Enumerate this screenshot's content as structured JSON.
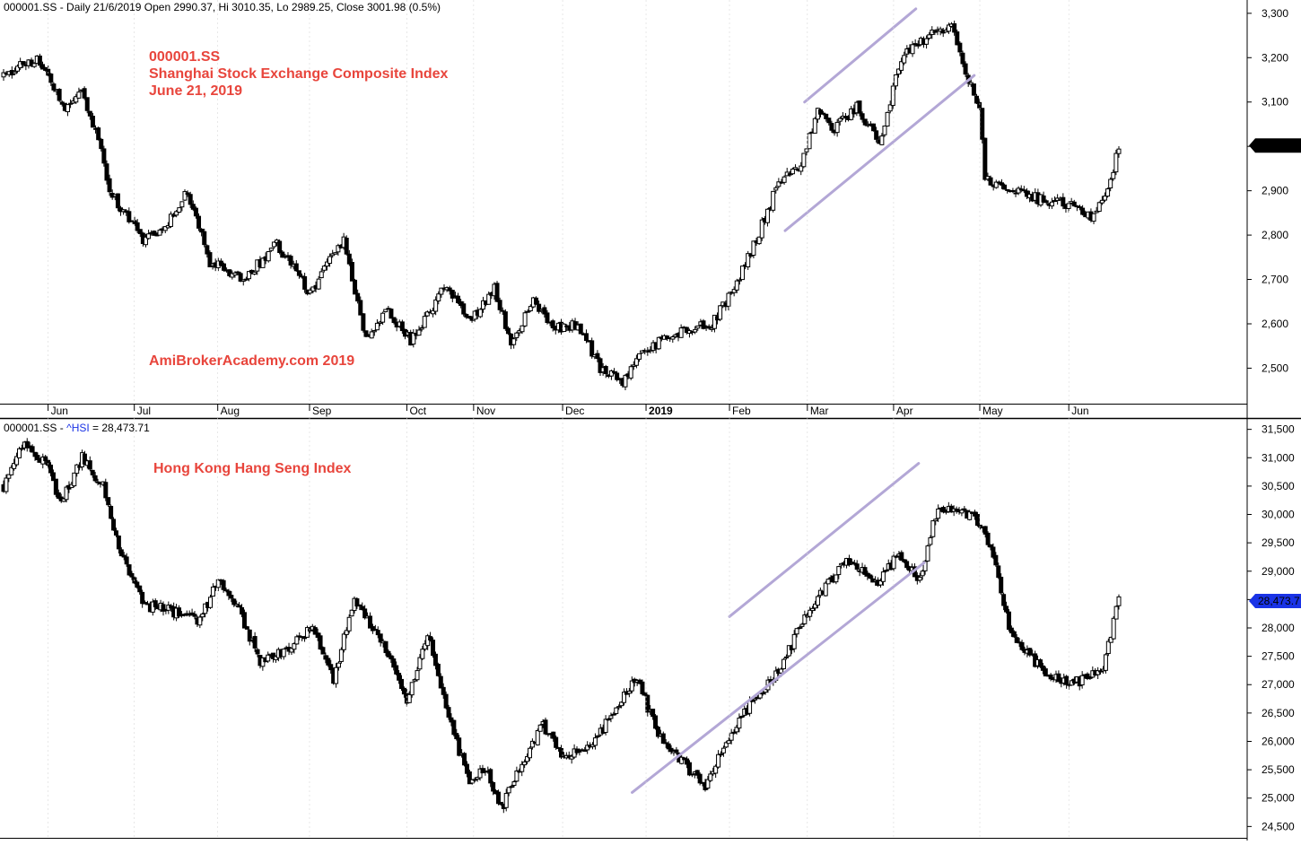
{
  "colors": {
    "annotation": "#e8453c",
    "channel": "#b3a7d6",
    "candle_up": "#ffffff",
    "candle_down": "#000000",
    "badge_fill": "#000000",
    "badge2_fill": "#1a33e6",
    "separator": "#000000",
    "series_link": "#1a33e6"
  },
  "date_axis_top": {
    "labels": [
      "Jun",
      "Jul",
      "Aug",
      "Sep",
      "Oct",
      "Nov",
      "Dec",
      "2019",
      "Feb",
      "Mar",
      "Apr",
      "May",
      "Jun"
    ],
    "bold_label": "2019"
  },
  "chart_data": [
    {
      "type": "candlestick",
      "header": "000001.SS - Daily 21/6/2019 Open 2990.37, Hi 3010.35, Lo 2989.25, Close 3001.98 (0.5%)",
      "annotations": [
        "000001.SS",
        "Shanghai Stock Exchange Composite Index",
        "June 21, 2019",
        "AmiBrokerAcademy.com  2019"
      ],
      "ylim": [
        2420,
        3330
      ],
      "yticks": [
        2500,
        2600,
        2700,
        2800,
        2900,
        3000,
        3100,
        3200,
        3300
      ],
      "ytick_labels": [
        "2,500",
        "2,600",
        "2,700",
        "2,800",
        "2,900",
        "3,000",
        "3,100",
        "3,200",
        "3,300"
      ],
      "last_value": 3001.98,
      "last_value_label": "3,001.98",
      "anchors": [
        [
          0,
          3160
        ],
        [
          12,
          3200
        ],
        [
          22,
          3080
        ],
        [
          28,
          3120
        ],
        [
          34,
          3020
        ],
        [
          38,
          2900
        ],
        [
          50,
          2790
        ],
        [
          58,
          2820
        ],
        [
          66,
          2900
        ],
        [
          74,
          2740
        ],
        [
          86,
          2700
        ],
        [
          98,
          2780
        ],
        [
          110,
          2670
        ],
        [
          122,
          2790
        ],
        [
          130,
          2560
        ],
        [
          138,
          2630
        ],
        [
          146,
          2560
        ],
        [
          158,
          2680
        ],
        [
          168,
          2610
        ],
        [
          176,
          2680
        ],
        [
          182,
          2560
        ],
        [
          190,
          2650
        ],
        [
          198,
          2590
        ],
        [
          206,
          2600
        ],
        [
          214,
          2500
        ],
        [
          222,
          2470
        ],
        [
          230,
          2540
        ],
        [
          238,
          2570
        ],
        [
          246,
          2590
        ],
        [
          254,
          2600
        ],
        [
          262,
          2680
        ],
        [
          270,
          2790
        ],
        [
          278,
          2920
        ],
        [
          286,
          2960
        ],
        [
          292,
          3080
        ],
        [
          298,
          3040
        ],
        [
          306,
          3090
        ],
        [
          314,
          3010
        ],
        [
          322,
          3200
        ],
        [
          332,
          3250
        ],
        [
          340,
          3270
        ],
        [
          346,
          3150
        ],
        [
          350,
          3080
        ],
        [
          352,
          2930
        ],
        [
          362,
          2900
        ],
        [
          372,
          2880
        ],
        [
          382,
          2870
        ],
        [
          390,
          2840
        ],
        [
          396,
          2900
        ],
        [
          400,
          3002
        ]
      ],
      "channel": [
        {
          "from": [
            "2019-02-28",
            3100
          ],
          "to": [
            "2019-04-09",
            3310
          ]
        },
        {
          "from": [
            "2019-02-21",
            2810
          ],
          "to": [
            "2019-04-30",
            3160
          ]
        }
      ]
    },
    {
      "type": "candlestick",
      "header_prefix": "000001.SS - ",
      "header_series": "^HSI",
      "header_value": " = 28,473.71",
      "annotations": [
        "Hong Kong Hang Seng Index"
      ],
      "ylim": [
        24300,
        31700
      ],
      "yticks": [
        24500,
        25000,
        25500,
        26000,
        26500,
        27000,
        27500,
        28000,
        28500,
        29000,
        29500,
        30000,
        30500,
        31000,
        31500
      ],
      "ytick_labels": [
        "24,500",
        "25,000",
        "25,500",
        "26,000",
        "26,500",
        "27,000",
        "27,500",
        "28,000",
        "28,500",
        "29,000",
        "29,500",
        "30,000",
        "30,500",
        "31,000",
        "31,500"
      ],
      "last_value": 28473.71,
      "last_value_label": "28,473.7",
      "anchors": [
        [
          0,
          30500
        ],
        [
          8,
          31300
        ],
        [
          16,
          30900
        ],
        [
          22,
          30200
        ],
        [
          30,
          31000
        ],
        [
          38,
          30500
        ],
        [
          44,
          29400
        ],
        [
          54,
          28400
        ],
        [
          64,
          28300
        ],
        [
          74,
          28100
        ],
        [
          82,
          28800
        ],
        [
          90,
          28300
        ],
        [
          98,
          27400
        ],
        [
          108,
          27600
        ],
        [
          118,
          28000
        ],
        [
          126,
          27100
        ],
        [
          134,
          28500
        ],
        [
          146,
          27600
        ],
        [
          154,
          26700
        ],
        [
          162,
          27900
        ],
        [
          172,
          26100
        ],
        [
          178,
          25300
        ],
        [
          184,
          25500
        ],
        [
          190,
          24800
        ],
        [
          196,
          25400
        ],
        [
          206,
          26300
        ],
        [
          214,
          25700
        ],
        [
          226,
          26000
        ],
        [
          234,
          26600
        ],
        [
          242,
          27100
        ],
        [
          250,
          26100
        ],
        [
          260,
          25600
        ],
        [
          268,
          25200
        ],
        [
          276,
          26000
        ],
        [
          286,
          26700
        ],
        [
          296,
          27200
        ],
        [
          304,
          28000
        ],
        [
          312,
          28600
        ],
        [
          322,
          29200
        ],
        [
          334,
          28800
        ],
        [
          342,
          29300
        ],
        [
          350,
          28800
        ],
        [
          356,
          30000
        ],
        [
          364,
          30100
        ],
        [
          372,
          29900
        ],
        [
          378,
          29300
        ],
        [
          384,
          28000
        ],
        [
          390,
          27600
        ],
        [
          398,
          27200
        ],
        [
          406,
          27000
        ],
        [
          414,
          27100
        ],
        [
          420,
          27300
        ],
        [
          426,
          28500
        ]
      ],
      "channel": [
        {
          "from": [
            "2019-02-01",
            28200
          ],
          "to": [
            "2019-04-10",
            30900
          ]
        },
        {
          "from": [
            "2018-12-28",
            25100
          ],
          "to": [
            "2019-04-12",
            29150
          ]
        }
      ]
    }
  ]
}
